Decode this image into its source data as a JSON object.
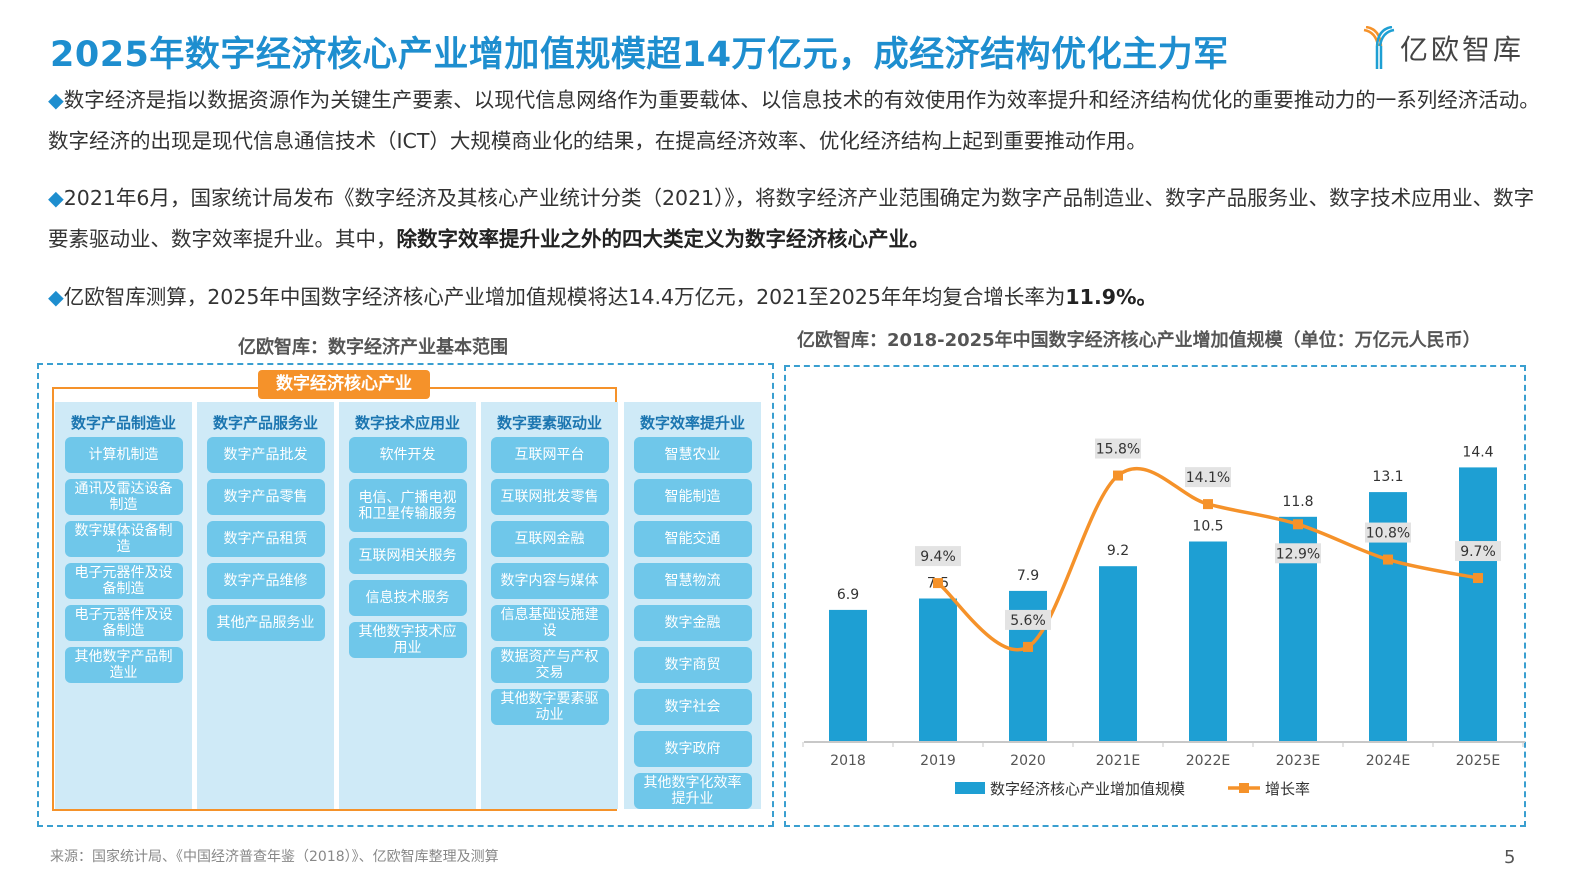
{
  "header": {
    "title": "2025年数字经济核心产业增加值规模超14万亿元，成经济结构优化主力军",
    "logo": "亿欧智库"
  },
  "paragraphs": [
    {
      "bullet": "◆",
      "text": "数字经济是指以数据资源作为关键生产要素、以现代信息网络作为重要载体、以信息技术的有效使用作为效率提升和经济结构优化的重要推动力的一系列经济活动。数字经济的出现是现代信息通信技术（ICT）大规模商业化的结果，在提高经济效率、优化经济结构上起到重要推动作用。"
    },
    {
      "bullet": "◆",
      "text": "2021年6月，国家统计局发布《数字经济及其核心产业统计分类（2021）》，将数字经济产业范围确定为数字产品制造业、数字产品服务业、数字技术应用业、数字要素驱动业、数字效率提升业。其中，",
      "bold": "除数字效率提升业之外的四大类定义为数字经济核心产业。"
    },
    {
      "bullet": "◆",
      "text": "亿欧智库测算，2025年中国数字经济核心产业增加值规模将达14.4万亿元，2021至2025年年均复合增长率为",
      "bold": "11.9%。"
    }
  ],
  "left_panel": {
    "title": "亿欧智库：数字经济产业基本范围",
    "core_label": "数字经济核心产业",
    "columns": [
      {
        "head": "数字产品制造业",
        "items": [
          "计算机制造",
          "通讯及雷达设备制造",
          "数字媒体设备制造",
          "电子元器件及设备制造",
          "电子元器件及设备制造",
          "其他数字产品制造业"
        ]
      },
      {
        "head": "数字产品服务业",
        "items": [
          "数字产品批发",
          "数字产品零售",
          "数字产品租赁",
          "数字产品维修",
          "其他产品服务业"
        ]
      },
      {
        "head": "数字技术应用业",
        "items": [
          "软件开发",
          "电信、广播电视和卫星传输服务",
          "互联网相关服务",
          "信息技术服务",
          "其他数字技术应用业"
        ]
      },
      {
        "head": "数字要素驱动业",
        "items": [
          "互联网平台",
          "互联网批发零售",
          "互联网金融",
          "数字内容与媒体",
          "信息基础设施建设",
          "数据资产与产权交易",
          "其他数字要素驱动业"
        ]
      },
      {
        "head": "数字效率提升业",
        "items": [
          "智慧农业",
          "智能制造",
          "智能交通",
          "智慧物流",
          "数字金融",
          "数字商贸",
          "数字社会",
          "数字政府",
          "其他数字化效率提升业"
        ]
      }
    ]
  },
  "chart_data": {
    "type": "bar+line",
    "title": "亿欧智库：2018-2025年中国数字经济核心产业增加值规模（单位：万亿元人民币）",
    "categories": [
      "2018",
      "2019",
      "2020",
      "2021E",
      "2022E",
      "2023E",
      "2024E",
      "2025E"
    ],
    "series": [
      {
        "name": "数字经济核心产业增加值规模",
        "type": "bar",
        "values": [
          6.9,
          7.5,
          7.9,
          9.2,
          10.5,
          11.8,
          13.1,
          14.4
        ],
        "labels": [
          "6.9",
          "7.5",
          "7.9",
          "9.2",
          "10.5",
          "11.8",
          "13.1",
          "14.4"
        ],
        "color": "#1e9fd3"
      },
      {
        "name": "增长率",
        "type": "line",
        "smooth": true,
        "values": [
          null,
          9.4,
          5.6,
          15.8,
          14.1,
          12.9,
          10.8,
          9.7
        ],
        "labels": [
          "",
          "9.4%",
          "5.6%",
          "15.8%",
          "14.1%",
          "12.9%",
          "10.8%",
          "9.7%"
        ],
        "color": "#f5922a"
      }
    ],
    "legend": "bottom",
    "grid": false
  },
  "footer": {
    "source": "来源：国家统计局、《中国经济普查年鉴（2018）》、亿欧智库整理及测算",
    "page": "5"
  }
}
